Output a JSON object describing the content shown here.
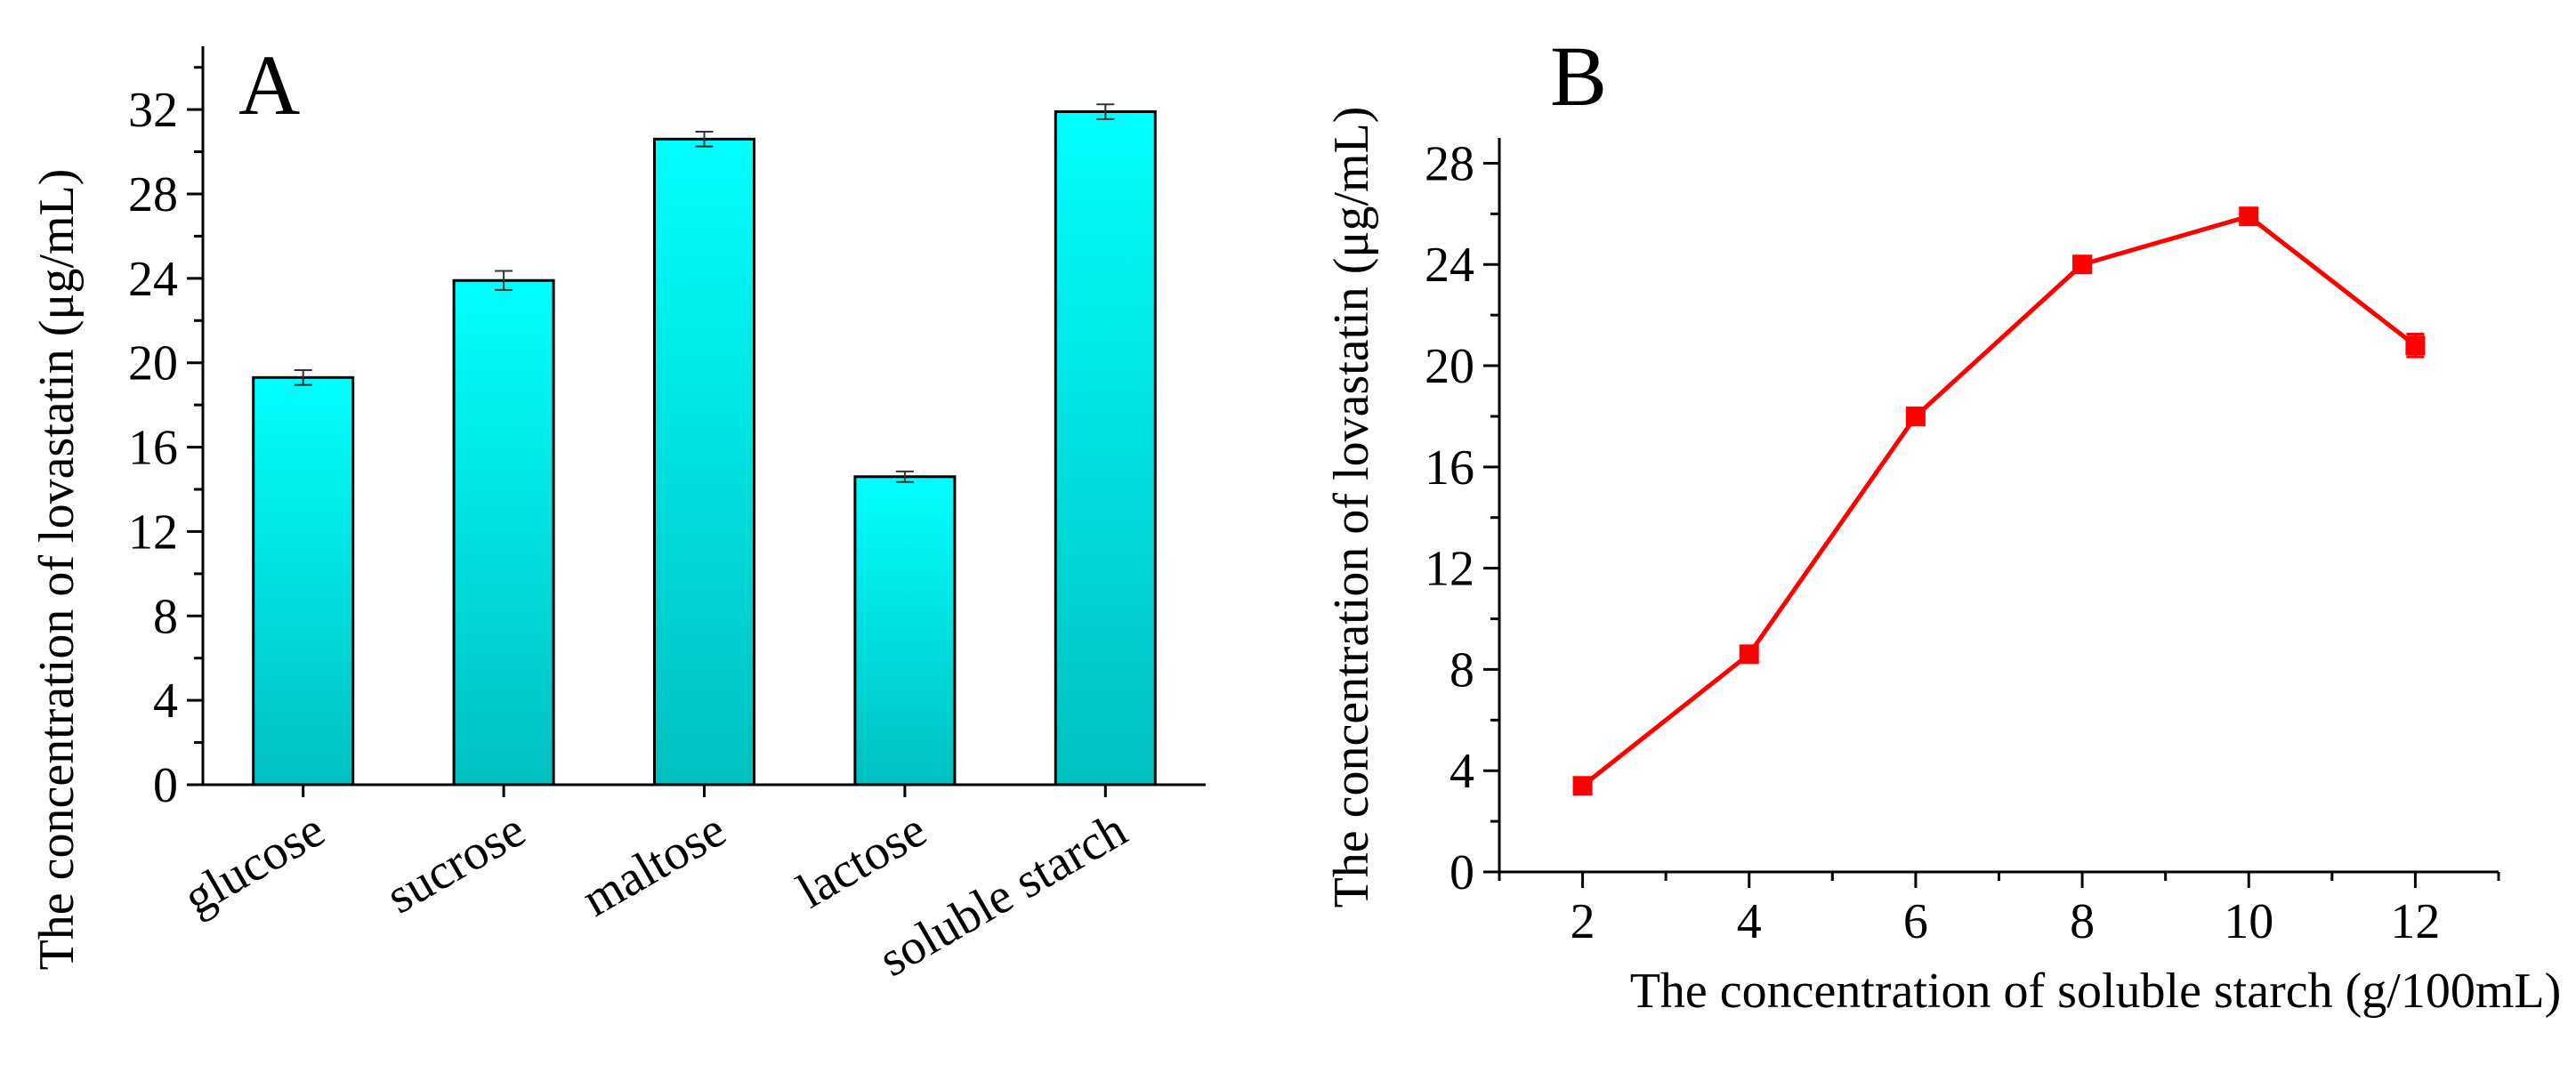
{
  "chart_data": [
    {
      "type": "bar",
      "panel_label": "A",
      "title": "",
      "xlabel": "",
      "ylabel": "The concentration of lovastatin (μg/mL)",
      "categories": [
        "glucose",
        "sucrose",
        "maltose",
        "lactose",
        "soluble starch"
      ],
      "values": [
        19.3,
        23.9,
        30.6,
        14.6,
        31.9
      ],
      "errors": [
        0.35,
        0.45,
        0.35,
        0.25,
        0.35
      ],
      "ylim": [
        0,
        35
      ],
      "yticks": [
        "0",
        "4",
        "8",
        "12",
        "16",
        "20",
        "24",
        "28",
        "32"
      ],
      "bar_color_top": "#00FFFF",
      "bar_color_bottom": "#00C0C0",
      "grid": false
    },
    {
      "type": "line",
      "panel_label": "B",
      "title": "",
      "xlabel": "The concentration of soluble starch (g/100mL)",
      "ylabel": "The concentration of lovastatin (μg/mL)",
      "x": [
        2,
        4,
        6,
        8,
        10,
        12
      ],
      "values": [
        3.4,
        8.6,
        18.0,
        24.0,
        25.9,
        20.8
      ],
      "errors": [
        0.2,
        0.25,
        0.3,
        0.3,
        0.3,
        0.45
      ],
      "xlim": [
        1,
        13
      ],
      "ylim": [
        0,
        29
      ],
      "xticks": [
        "2",
        "4",
        "6",
        "8",
        "10",
        "12"
      ],
      "yticks": [
        "0",
        "4",
        "8",
        "12",
        "16",
        "20",
        "24",
        "28"
      ],
      "series_color": "#FF0000",
      "marker": "square",
      "grid": false
    }
  ]
}
